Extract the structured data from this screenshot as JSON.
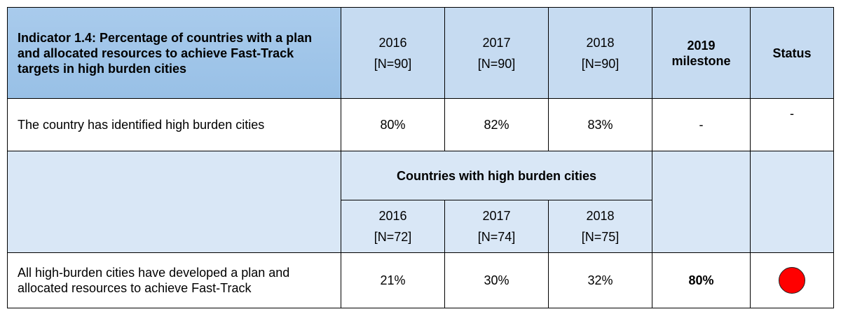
{
  "header": {
    "indicator": "Indicator 1.4: Percentage of countries with a plan and allocated resources to achieve Fast-Track targets in high burden cities",
    "years": [
      {
        "year": "2016",
        "n": "[N=90]"
      },
      {
        "year": "2017",
        "n": "[N=90]"
      },
      {
        "year": "2018",
        "n": "[N=90]"
      }
    ],
    "milestone": "2019 milestone",
    "status": "Status"
  },
  "row1": {
    "label": "The country has identified high burden cities",
    "values": [
      "80%",
      "82%",
      "83%"
    ],
    "milestone": "-",
    "status": "-"
  },
  "subheader": {
    "title": "Countries with high burden cities",
    "years": [
      {
        "year": "2016",
        "n": "[N=72]"
      },
      {
        "year": "2017",
        "n": "[N=74]"
      },
      {
        "year": "2018",
        "n": "[N=75]"
      }
    ]
  },
  "row2": {
    "label": "All high-burden cities have developed a plan and allocated resources to achieve Fast-Track",
    "values": [
      "21%",
      "30%",
      "32%"
    ],
    "milestone": "80%"
  }
}
